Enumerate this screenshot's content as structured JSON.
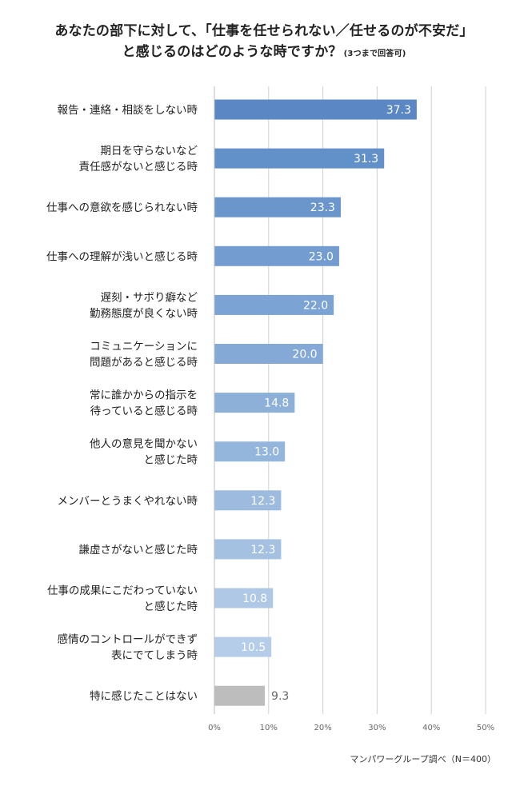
{
  "chart_data": {
    "type": "bar",
    "orientation": "horizontal",
    "title_line1": "あなたの部下に対して、「仕事を任せられない／任せるのが不安だ」",
    "title_line2": "と感じるのはどのような時ですか？",
    "title_note": "(3つまで回答可)",
    "categories": [
      [
        "報告・連絡・相談をしない時"
      ],
      [
        "期日を守らないなど",
        "責任感がないと感じる時"
      ],
      [
        "仕事への意欲を感じられない時"
      ],
      [
        "仕事への理解が浅いと感じる時"
      ],
      [
        "遅刻・サボり癖など",
        "勤務態度が良くない時"
      ],
      [
        "コミュニケーションに",
        "問題があると感じる時"
      ],
      [
        "常に誰かからの指示を",
        "待っていると感じる時"
      ],
      [
        "他人の意見を聞かない",
        "と感じた時"
      ],
      [
        "メンバーとうまくやれない時"
      ],
      [
        "謙虚さがないと感じた時"
      ],
      [
        "仕事の成果にこだわっていない",
        "と感じた時"
      ],
      [
        "感情のコントロールができず",
        "表にでてしまう時"
      ],
      [
        "特に感じたことはない"
      ]
    ],
    "values": [
      37.3,
      31.3,
      23.3,
      23.0,
      22.0,
      20.0,
      14.8,
      13.0,
      12.3,
      12.3,
      10.8,
      10.5,
      9.3
    ],
    "value_labels": [
      "37.3",
      "31.3",
      "23.3",
      "23.0",
      "22.0",
      "20.0",
      "14.8",
      "13.0",
      "12.3",
      "12.3",
      "10.8",
      "10.5",
      "9.3"
    ],
    "bar_colors": [
      "#5b87c5",
      "#6290c8",
      "#6a96cc",
      "#739dd0",
      "#7ba3d3",
      "#84a9d6",
      "#8db0d9",
      "#95b6dc",
      "#9cbbdf",
      "#a4c1e2",
      "#aec8e6",
      "#b6cde9",
      "#bdbdbd"
    ],
    "label_colors": [
      "#ffffff",
      "#ffffff",
      "#ffffff",
      "#ffffff",
      "#ffffff",
      "#ffffff",
      "#ffffff",
      "#ffffff",
      "#ffffff",
      "#ffffff",
      "#ffffff",
      "#ffffff",
      "#666666"
    ],
    "xlim": [
      0,
      50
    ],
    "xticks": [
      0,
      10,
      20,
      30,
      40,
      50
    ],
    "xtick_labels": [
      "0%",
      "10%",
      "20%",
      "30%",
      "40%",
      "50%"
    ],
    "grid": true,
    "gridline_color": "#d0d0d0"
  },
  "source": "マンパワーグループ調べ（N＝400）"
}
